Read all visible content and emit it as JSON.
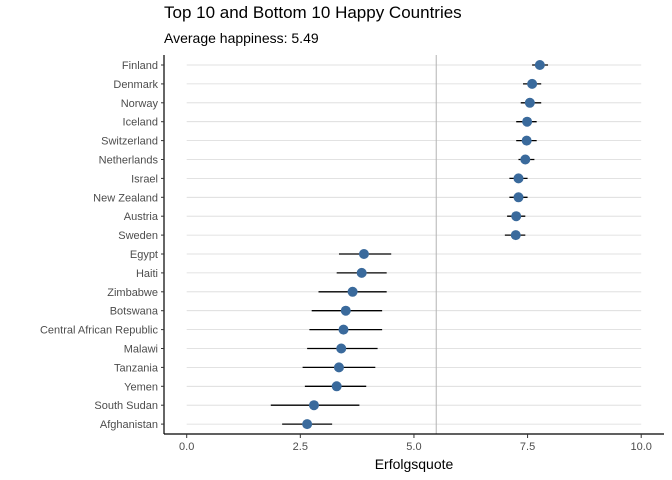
{
  "chart_data": {
    "type": "scatter",
    "title": "Top 10 and Bottom 10 Happy Countries",
    "subtitle": "Average happiness: 5.49",
    "xlabel": "Erfolgsquote",
    "ylabel": "",
    "xlim": [
      0,
      10
    ],
    "x_ticks": [
      "0.0",
      "2.5",
      "5.0",
      "7.5",
      "10.0"
    ],
    "x_tick_values": [
      0,
      2.5,
      5,
      7.5,
      10
    ],
    "reference_line": 5.49,
    "grid": "horizontal",
    "legend": "none",
    "colors": {
      "point": "#3a6a9c",
      "errorbar": "#000000",
      "grid": "#d9d9d9",
      "reference": "#b3b3b3"
    },
    "categories": [
      "Finland",
      "Denmark",
      "Norway",
      "Iceland",
      "Switzerland",
      "Netherlands",
      "Israel",
      "New Zealand",
      "Austria",
      "Sweden",
      "Egypt",
      "Haiti",
      "Zimbabwe",
      "Botswana",
      "Central African Republic",
      "Malawi",
      "Tanzania",
      "Yemen",
      "South Sudan",
      "Afghanistan"
    ],
    "values": [
      7.77,
      7.6,
      7.55,
      7.49,
      7.48,
      7.45,
      7.3,
      7.3,
      7.25,
      7.24,
      3.9,
      3.85,
      3.65,
      3.5,
      3.45,
      3.4,
      3.35,
      3.3,
      2.8,
      2.65
    ],
    "lower": [
      7.6,
      7.4,
      7.35,
      7.25,
      7.25,
      7.3,
      7.1,
      7.1,
      7.05,
      7.0,
      3.35,
      3.3,
      2.9,
      2.75,
      2.7,
      2.65,
      2.55,
      2.6,
      1.85,
      2.1
    ],
    "upper": [
      7.95,
      7.8,
      7.8,
      7.7,
      7.7,
      7.65,
      7.5,
      7.5,
      7.45,
      7.45,
      4.5,
      4.4,
      4.4,
      4.3,
      4.3,
      4.2,
      4.15,
      3.95,
      3.8,
      3.2
    ]
  }
}
